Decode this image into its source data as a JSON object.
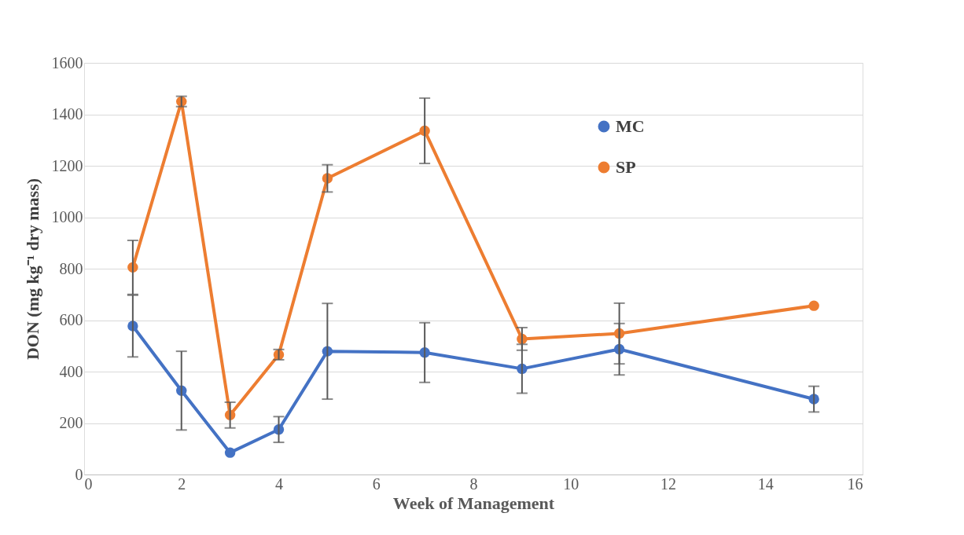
{
  "chart_data": {
    "type": "line",
    "xlabel": "Week of Management",
    "ylabel": "DON (mg kg⁻¹ dry mass)",
    "x": [
      1,
      2,
      3,
      4,
      5,
      7,
      9,
      11,
      15
    ],
    "series": [
      {
        "name": "MC",
        "color": "#4472c4",
        "values": [
          577,
          326,
          85,
          175,
          479,
          474,
          411,
          487,
          293
        ],
        "errors": [
          120,
          153,
          null,
          50,
          186,
          116,
          95,
          100,
          50
        ]
      },
      {
        "name": "SP",
        "color": "#ed7d31",
        "values": [
          805,
          1450,
          231,
          466,
          1151,
          1336,
          527,
          548,
          656
        ],
        "errors": [
          105,
          20,
          50,
          20,
          53,
          127,
          44,
          118,
          null
        ]
      }
    ],
    "xlim": [
      0,
      16
    ],
    "xticks": [
      0,
      2,
      4,
      6,
      8,
      10,
      12,
      14,
      16
    ],
    "ylim": [
      0,
      1600
    ],
    "yticks": [
      0,
      200,
      400,
      600,
      800,
      1000,
      1200,
      1400,
      1600
    ],
    "grid": "y",
    "legend": "top right",
    "marker": "circle",
    "line_style": "solid"
  }
}
